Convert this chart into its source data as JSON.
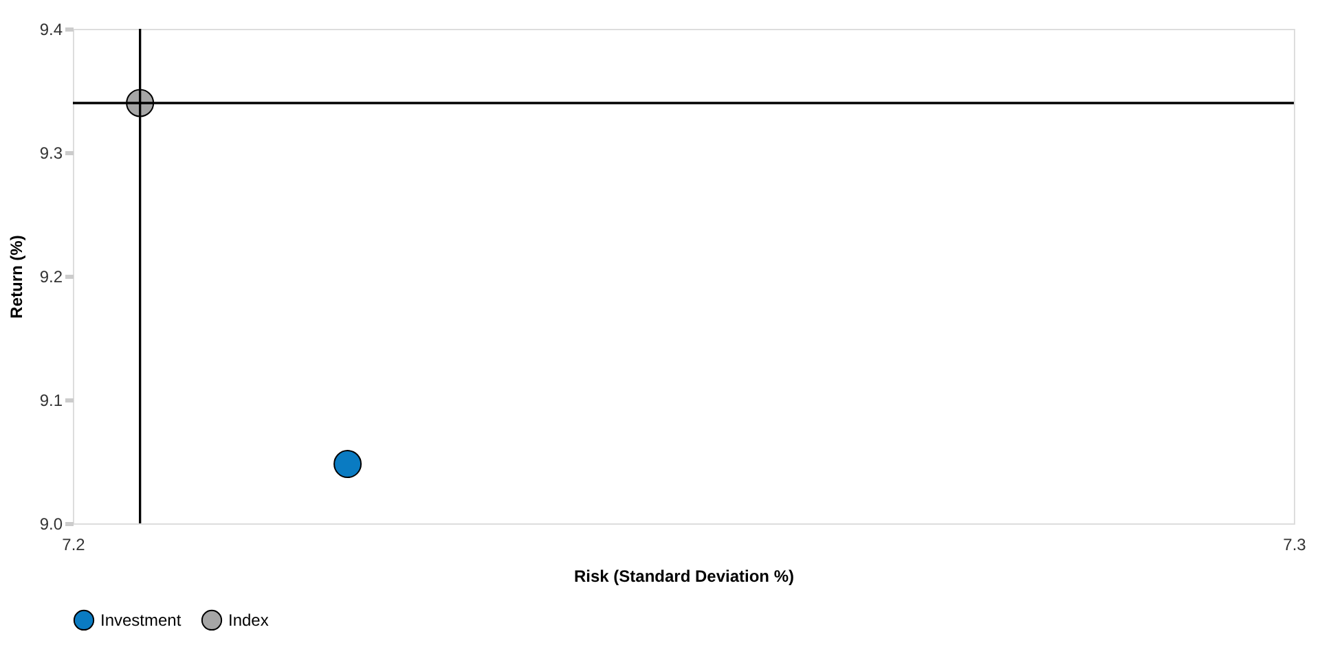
{
  "chart_data": {
    "type": "scatter",
    "xlabel": "Risk (Standard Deviation %)",
    "ylabel": "Return (%)",
    "series": [
      {
        "name": "Investment",
        "color": "#0a7bc2",
        "x": [
          7.2225
        ],
        "values": [
          9.048
        ]
      },
      {
        "name": "Index",
        "color": "#a6a6a6",
        "x": [
          7.2055
        ],
        "values": [
          9.34
        ]
      }
    ],
    "xlim": [
      7.2,
      7.3
    ],
    "xticks": [
      7.2,
      7.3
    ],
    "ylim": [
      9.0,
      9.4
    ],
    "yticks": [
      {
        "value": 9.0,
        "label": "9.0"
      },
      9.1,
      9.2,
      9.3,
      9.4
    ],
    "ref_lines": [
      {
        "axis": "x",
        "value": 7.2055,
        "color": "#000000"
      },
      {
        "axis": "y",
        "value": 9.34,
        "color": "#000000"
      }
    ],
    "grid": false,
    "legend": "bottom left",
    "marker": "circle"
  }
}
